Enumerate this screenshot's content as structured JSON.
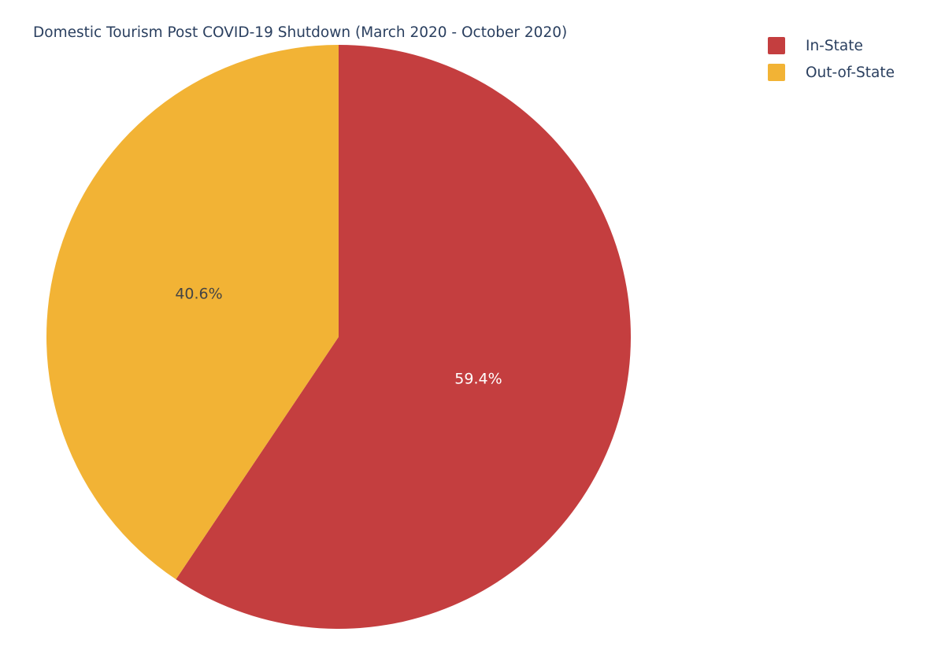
{
  "chart_data": {
    "type": "pie",
    "title": "Domestic Tourism Post COVID-19 Shutdown (March 2020 - October 2020)",
    "slices": [
      {
        "label": "In-State",
        "value": 59.4,
        "display": "59.4%",
        "color": "#c43e3f",
        "label_color": "#ffffff"
      },
      {
        "label": "Out-of-State",
        "value": 40.6,
        "display": "40.6%",
        "color": "#f2b335",
        "label_color": "#444444"
      }
    ],
    "direction": "clockwise",
    "start": "top",
    "legend_position": "top-right"
  }
}
